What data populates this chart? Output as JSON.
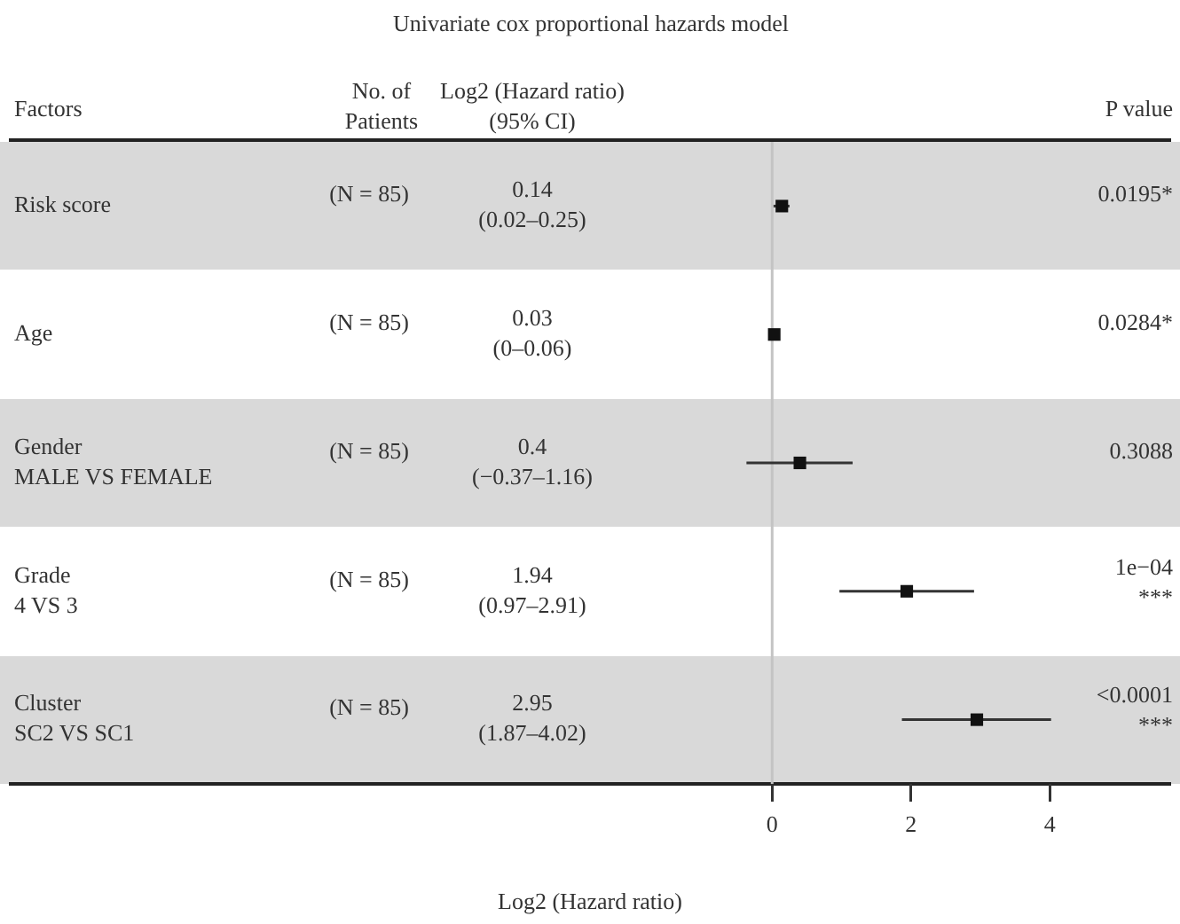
{
  "chart_data": {
    "type": "scatter",
    "orientation": "horizontal",
    "title": "Univariate cox proportional hazards model",
    "xlabel": "Log2 (Hazard ratio)",
    "categories": [
      "Risk score",
      "Age",
      "Gender\nMALE VS FEMALE",
      "Grade\n4 VS 3",
      "Cluster\nSC2 VS SC1"
    ],
    "values": [
      0.14,
      0.03,
      0.4,
      1.94,
      2.95
    ],
    "errors": [
      [
        0.02,
        0.25
      ],
      [
        0,
        0.06
      ],
      [
        -0.37,
        1.16
      ],
      [
        0.97,
        2.91
      ],
      [
        1.87,
        4.02
      ]
    ],
    "color": "#111111",
    "marker": "square",
    "grid": false,
    "legend": false,
    "xlim": [
      -11,
      5.75
    ],
    "xticks": [
      0,
      2,
      4
    ],
    "ref_lines": [
      {
        "axis": "x",
        "value": 0,
        "color": "#c4c4c4"
      }
    ],
    "annotations": [
      "Factors",
      "No. of\nPatients",
      "Log2 (Hazard ratio)\n(95% CI)",
      "P value",
      "(N = 85)",
      "(N = 85)",
      "(N = 85)",
      "(N = 85)",
      "(N = 85)",
      "0.14\n(0.02–0.25)",
      "0.03\n(0–0.06)",
      "0.4\n(−0.37–1.16)",
      "1.94\n(0.97–2.91)",
      "2.95\n(1.87–4.02)",
      "0.0195*",
      "0.0284*",
      "0.3088",
      "1e−04\n***",
      "<0.0001\n***"
    ]
  }
}
